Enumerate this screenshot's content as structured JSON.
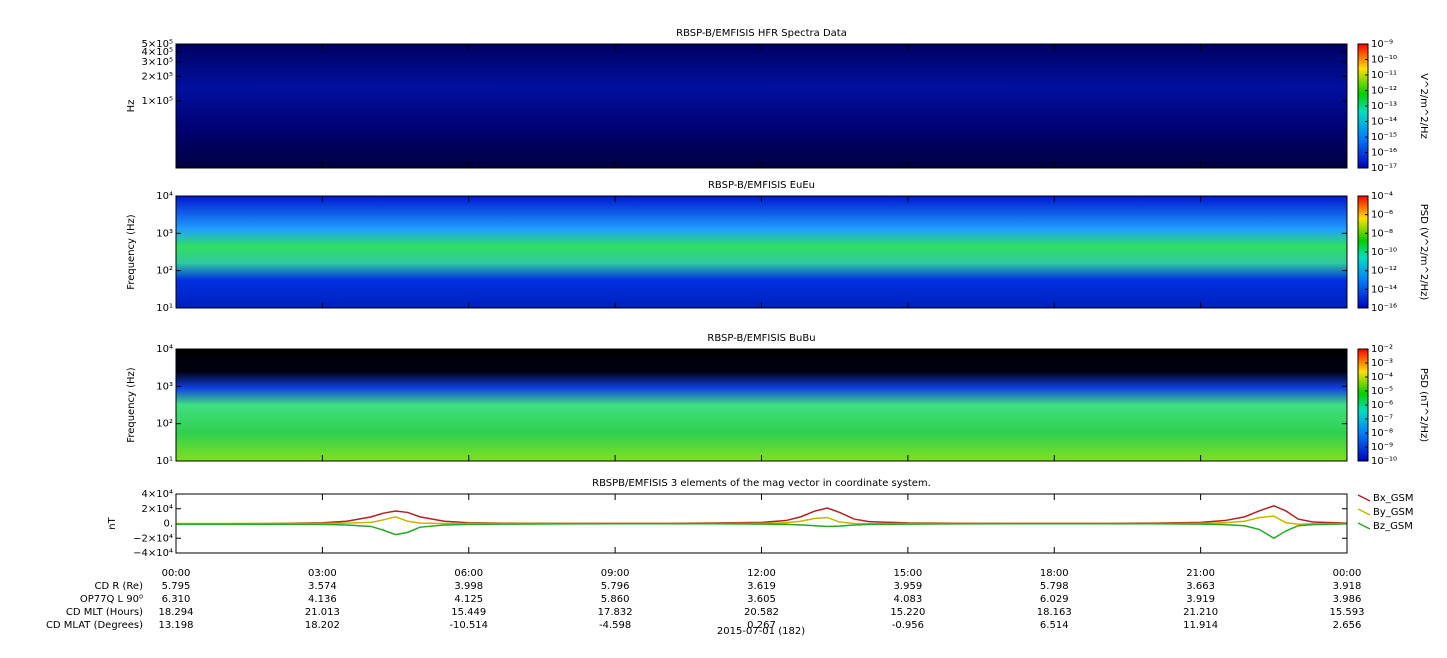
{
  "chart_data": [
    {
      "type": "spectrogram",
      "title": "RBSP-B/EMFISIS  HFR Spectra Data",
      "ylabel": "Hz",
      "log": true,
      "ylim": [
        15000,
        500000
      ],
      "yticks": [
        {
          "value": 500000,
          "label": "5×10⁵"
        },
        {
          "value": 400000,
          "label": "4×10⁵"
        },
        {
          "value": 300000,
          "label": "3×10⁵"
        },
        {
          "value": 200000,
          "label": "2×10⁵"
        },
        {
          "value": 100000,
          "label": "1×10⁵"
        }
      ],
      "colorbar_label": "V^2/m^2/Hz",
      "zlim": [
        1e-17,
        1e-09
      ],
      "zticks": [
        {
          "value": 1e-09,
          "label": "10⁻⁹"
        },
        {
          "value": 1e-10,
          "label": "10⁻¹⁰"
        },
        {
          "value": 1e-11,
          "label": "10⁻¹¹"
        },
        {
          "value": 1e-12,
          "label": "10⁻¹²"
        },
        {
          "value": 1e-13,
          "label": "10⁻¹³"
        },
        {
          "value": 1e-14,
          "label": "10⁻¹⁴"
        },
        {
          "value": 1e-15,
          "label": "10⁻¹⁵"
        },
        {
          "value": 1e-16,
          "label": "10⁻¹⁶"
        },
        {
          "value": 1e-17,
          "label": "10⁻¹⁷"
        }
      ]
    },
    {
      "type": "spectrogram",
      "title": "RBSP-B/EMFISIS  EuEu",
      "ylabel": "Frequency (Hz)",
      "log": true,
      "ylim": [
        10,
        10000
      ],
      "yticks": [
        {
          "value": 10,
          "label": "10¹"
        },
        {
          "value": 100,
          "label": "10²"
        },
        {
          "value": 1000,
          "label": "10³"
        },
        {
          "value": 10000,
          "label": "10⁴"
        }
      ],
      "colorbar_label": "PSD (V^2/m^2/Hz)",
      "zlim": [
        1e-16,
        0.0001
      ],
      "zticks": [
        {
          "value": 0.0001,
          "label": "10⁻⁴"
        },
        {
          "value": 1e-06,
          "label": "10⁻⁶"
        },
        {
          "value": 1e-08,
          "label": "10⁻⁸"
        },
        {
          "value": 1e-10,
          "label": "10⁻¹⁰"
        },
        {
          "value": 1e-12,
          "label": "10⁻¹²"
        },
        {
          "value": 1e-14,
          "label": "10⁻¹⁴"
        },
        {
          "value": 1e-16,
          "label": "10⁻¹⁶"
        }
      ]
    },
    {
      "type": "spectrogram",
      "title": "RBSP-B/EMFISIS  BuBu",
      "ylabel": "Frequency (Hz)",
      "log": true,
      "ylim": [
        10,
        10000
      ],
      "yticks": [
        {
          "value": 10,
          "label": "10¹"
        },
        {
          "value": 100,
          "label": "10²"
        },
        {
          "value": 1000,
          "label": "10³"
        },
        {
          "value": 10000,
          "label": "10⁴"
        }
      ],
      "colorbar_label": "PSD (nT^2/Hz)",
      "zlim": [
        1e-10,
        0.01
      ],
      "zticks": [
        {
          "value": 0.01,
          "label": "10⁻²"
        },
        {
          "value": 0.001,
          "label": "10⁻³"
        },
        {
          "value": 0.0001,
          "label": "10⁻⁴"
        },
        {
          "value": 1e-05,
          "label": "10⁻⁵"
        },
        {
          "value": 1e-06,
          "label": "10⁻⁶"
        },
        {
          "value": 1e-07,
          "label": "10⁻⁷"
        },
        {
          "value": 1e-08,
          "label": "10⁻⁸"
        },
        {
          "value": 1e-09,
          "label": "10⁻⁹"
        },
        {
          "value": 1e-10,
          "label": "10⁻¹⁰"
        }
      ]
    },
    {
      "type": "line",
      "title": "RBSPB/EMFISIS  3 elements of the mag vector in coordinate system.",
      "ylabel": "nT",
      "ylim": [
        -40000,
        40000
      ],
      "yticks": [
        {
          "value": 40000,
          "label": "4×10⁴"
        },
        {
          "value": 20000,
          "label": "2×10⁴"
        },
        {
          "value": 0,
          "label": "0."
        },
        {
          "value": -20000,
          "label": "−2×10⁴"
        },
        {
          "value": -40000,
          "label": "−4×10⁴"
        }
      ],
      "x": [
        0,
        1,
        2,
        3,
        3.5,
        4,
        4.25,
        4.5,
        4.75,
        5,
        5.5,
        6,
        7,
        8,
        9,
        10,
        11,
        12,
        12.5,
        12.8,
        13.1,
        13.35,
        13.6,
        13.9,
        14.2,
        15,
        16,
        17,
        18,
        19,
        20,
        21,
        21.5,
        21.9,
        22.2,
        22.5,
        22.75,
        23,
        23.3,
        24
      ],
      "series": [
        {
          "name": "Bx_GSM",
          "color": "#b22222",
          "values": [
            -500,
            -400,
            0,
            1000,
            3000,
            9000,
            14000,
            17000,
            15000,
            9000,
            3000,
            1000,
            300,
            200,
            100,
            200,
            600,
            1500,
            4000,
            9000,
            17000,
            21000,
            15000,
            6000,
            2500,
            800,
            300,
            100,
            100,
            200,
            500,
            1500,
            4000,
            9000,
            17000,
            24000,
            17000,
            6000,
            2000,
            500
          ]
        },
        {
          "name": "By_GSM",
          "color": "#c8b400",
          "values": [
            0,
            0,
            0,
            200,
            500,
            1500,
            5000,
            9000,
            3000,
            500,
            0,
            0,
            0,
            0,
            0,
            0,
            0,
            200,
            1000,
            3000,
            7000,
            8000,
            2000,
            0,
            -300,
            0,
            0,
            0,
            0,
            0,
            0,
            200,
            1000,
            3000,
            8000,
            10000,
            1000,
            -1000,
            -300,
            0
          ]
        },
        {
          "name": "Bz_GSM",
          "color": "#22aa22",
          "values": [
            -1000,
            -1000,
            -1000,
            -1200,
            -2000,
            -4000,
            -9000,
            -15000,
            -12000,
            -5000,
            -2000,
            -1200,
            -800,
            -500,
            -300,
            -300,
            -400,
            -800,
            -1200,
            -1800,
            -3000,
            -4000,
            -3500,
            -2000,
            -1200,
            -800,
            -500,
            -400,
            -300,
            -300,
            -400,
            -800,
            -1500,
            -3000,
            -8000,
            -20000,
            -10000,
            -3000,
            -1500,
            -500
          ]
        }
      ]
    }
  ],
  "time_axis": {
    "xlim": [
      0,
      24
    ],
    "date": "2015-07-01 (182)",
    "xticks": [
      {
        "value": 0,
        "label": "00:00"
      },
      {
        "value": 3,
        "label": "03:00"
      },
      {
        "value": 6,
        "label": "06:00"
      },
      {
        "value": 9,
        "label": "09:00"
      },
      {
        "value": 12,
        "label": "12:00"
      },
      {
        "value": 15,
        "label": "15:00"
      },
      {
        "value": 18,
        "label": "18:00"
      },
      {
        "value": 21,
        "label": "21:00"
      },
      {
        "value": 24,
        "label": "00:00"
      }
    ]
  },
  "orbit_table": {
    "rows": [
      {
        "label": "CD R (Re)",
        "values": [
          "5.795",
          "3.574",
          "3.998",
          "5.796",
          "3.619",
          "3.959",
          "5.798",
          "3.663",
          "3.918"
        ]
      },
      {
        "label": "OP77Q L 90⁰",
        "values": [
          "6.310",
          "4.136",
          "4.125",
          "5.860",
          "3.605",
          "4.083",
          "6.029",
          "3.919",
          "3.986"
        ]
      },
      {
        "label": "CD MLT (Hours)",
        "values": [
          "18.294",
          "21.013",
          "15.449",
          "17.832",
          "20.582",
          "15.220",
          "18.163",
          "21.210",
          "15.593"
        ]
      },
      {
        "label": "CD MLAT (Degrees)",
        "values": [
          "13.198",
          "18.202",
          "-10.514",
          "-4.598",
          "0.267",
          "-0.956",
          "6.514",
          "11.914",
          "2.656"
        ]
      }
    ]
  }
}
